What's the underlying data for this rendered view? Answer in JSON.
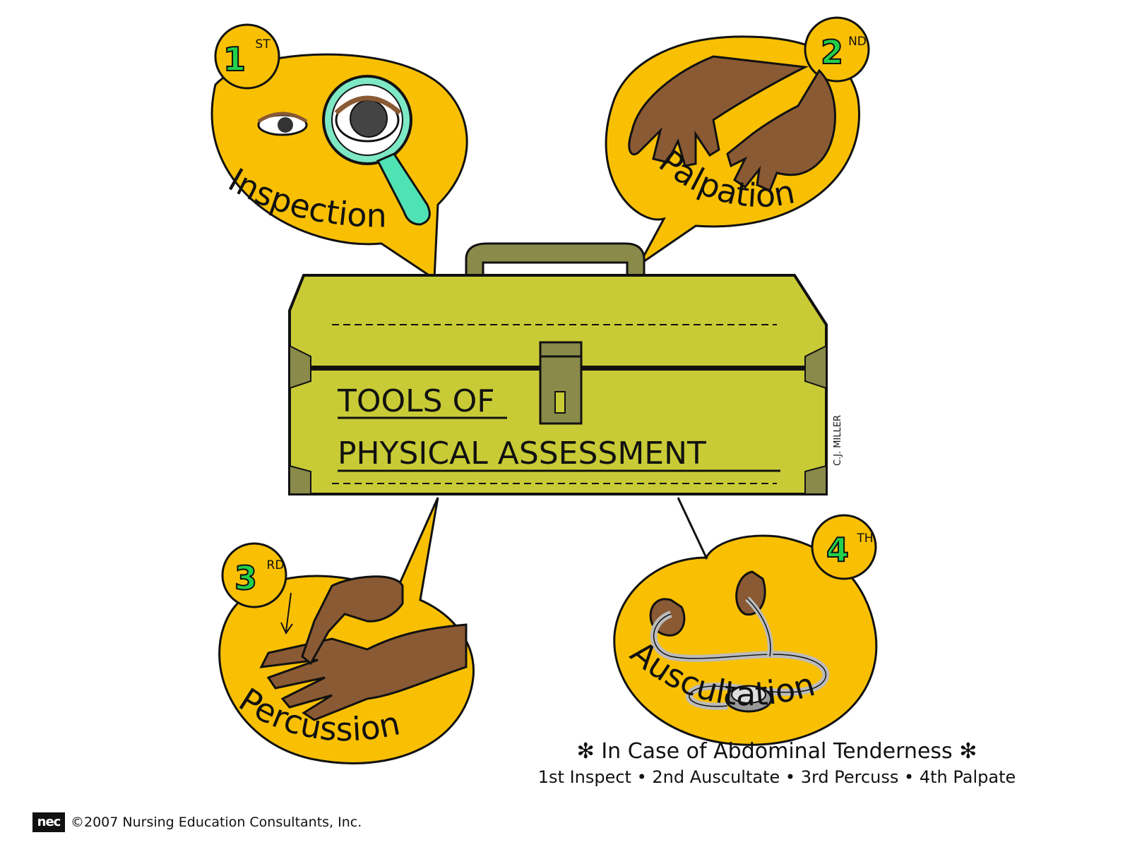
{
  "colors": {
    "bubble": "#f9c003",
    "toolbox": "#c9cb36",
    "handle": "#8a8a4a",
    "skin": "#8a5a34",
    "ordinal": "#22d14a",
    "magnifier_handle": "#4fe3b4",
    "outline": "#111111"
  },
  "steps": [
    {
      "label": "Inspection",
      "number": "1",
      "suffix": "ST",
      "icon": "magnifier-eye-icon"
    },
    {
      "label": "Palpation",
      "number": "2",
      "suffix": "ND",
      "icon": "palpating-hands-icon"
    },
    {
      "label": "Percussion",
      "number": "3",
      "suffix": "RD",
      "icon": "percussing-hands-icon"
    },
    {
      "label": "Auscultation",
      "number": "4",
      "suffix": "TH",
      "icon": "stethoscope-icon"
    }
  ],
  "toolbox": {
    "title_line1": "TOOLS OF",
    "title_line2": "PHYSICAL ASSESSMENT",
    "signature": "C.J. MILLER"
  },
  "note": {
    "title": "In Case of Abdominal Tenderness",
    "steps": [
      "1st Inspect",
      "2nd Auscultate",
      "3rd Percuss",
      "4th Palpate"
    ]
  },
  "footer": {
    "logo_text": "nec",
    "copyright": "©2007 Nursing Education Consultants, Inc."
  }
}
